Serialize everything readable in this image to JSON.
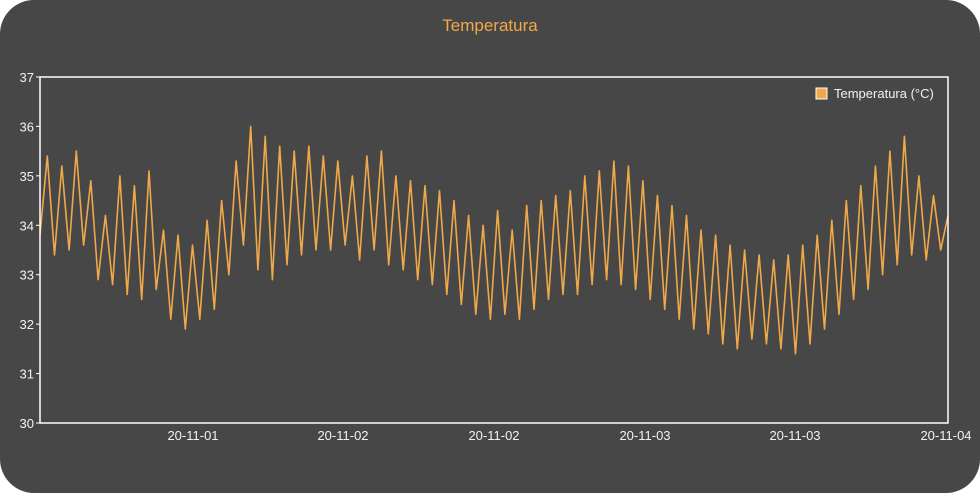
{
  "colors": {
    "background": "#474747",
    "series": "#f0a848",
    "axis": "#ffffff",
    "text": "#f2f2f2"
  },
  "chart_data": {
    "type": "line",
    "title": "Temperatura",
    "xlabel": "",
    "ylabel": "",
    "ylim": [
      30,
      37
    ],
    "yticks": [
      "30",
      "31",
      "32",
      "33",
      "34",
      "35",
      "36",
      "37"
    ],
    "xticks": [
      "20-11-01",
      "20-11-02",
      "20-11-02",
      "20-11-03",
      "20-11-03",
      "20-11-04"
    ],
    "grid": false,
    "legend_position": "top-right",
    "series": [
      {
        "name": "Temperatura (°C)",
        "values": [
          33.8,
          35.4,
          33.4,
          35.2,
          33.5,
          35.5,
          33.6,
          34.9,
          32.9,
          34.2,
          32.8,
          35.0,
          32.6,
          34.8,
          32.5,
          35.1,
          32.7,
          33.9,
          32.1,
          33.8,
          31.9,
          33.6,
          32.1,
          34.1,
          32.3,
          34.5,
          33.0,
          35.3,
          33.6,
          36.0,
          33.1,
          35.8,
          32.9,
          35.6,
          33.2,
          35.5,
          33.4,
          35.6,
          33.5,
          35.4,
          33.5,
          35.3,
          33.6,
          35.0,
          33.3,
          35.4,
          33.5,
          35.5,
          33.2,
          35.0,
          33.1,
          34.9,
          32.9,
          34.8,
          32.8,
          34.7,
          32.6,
          34.5,
          32.4,
          34.2,
          32.2,
          34.0,
          32.1,
          34.3,
          32.2,
          33.9,
          32.1,
          34.4,
          32.3,
          34.5,
          32.5,
          34.6,
          32.6,
          34.7,
          32.6,
          35.0,
          32.8,
          35.1,
          32.9,
          35.3,
          32.8,
          35.2,
          32.7,
          34.9,
          32.5,
          34.6,
          32.3,
          34.4,
          32.1,
          34.2,
          31.9,
          33.9,
          31.8,
          33.8,
          31.6,
          33.6,
          31.5,
          33.5,
          31.7,
          33.4,
          31.6,
          33.3,
          31.5,
          33.4,
          31.4,
          33.6,
          31.6,
          33.8,
          31.9,
          34.1,
          32.2,
          34.5,
          32.5,
          34.8,
          32.7,
          35.2,
          33.0,
          35.5,
          33.2,
          35.8,
          33.4,
          35.0,
          33.3,
          34.6,
          33.5,
          34.2
        ]
      }
    ]
  }
}
